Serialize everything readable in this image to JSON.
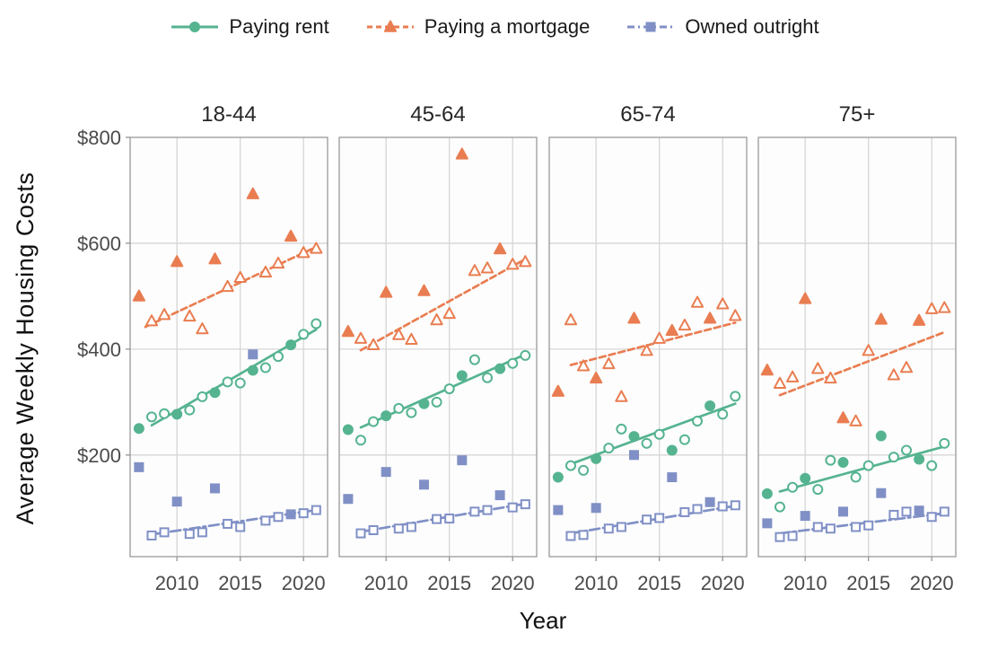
{
  "chart_data": {
    "type": "scatter",
    "title": "",
    "xlabel": "Year",
    "ylabel": "Average Weekly Housing Costs",
    "legend_position": "top",
    "grid": true,
    "xlim": [
      2006.3,
      2021.9
    ],
    "ylim": [
      8,
      800
    ],
    "xticks": [
      2010,
      2015,
      2020
    ],
    "xtick_labels": [
      "2010",
      "2015",
      "2020"
    ],
    "yticks": [
      200,
      400,
      600,
      800
    ],
    "ytick_labels": [
      "$200",
      "$400",
      "$600",
      "$800"
    ],
    "years": [
      2007,
      2008,
      2009,
      2010,
      2011,
      2012,
      2013,
      2014,
      2015,
      2016,
      2017,
      2018,
      2019,
      2020,
      2021
    ],
    "filled_marker_years": [
      2007,
      2010,
      2013,
      2016,
      2019
    ],
    "series_styles": [
      {
        "name": "Paying rent",
        "color": "#55b390",
        "marker": "circle",
        "line": "solid"
      },
      {
        "name": "Paying a mortgage",
        "color": "#e97d51",
        "marker": "triangle",
        "line": "dashed"
      },
      {
        "name": "Owned outright",
        "color": "#8090c6",
        "marker": "square",
        "line": "dashdot"
      }
    ],
    "facets": [
      {
        "title": "18-44",
        "series": [
          {
            "name": "Paying rent",
            "values": [
              250,
              272,
              278,
              277,
              285,
              310,
              318,
              338,
              336,
              360,
              365,
              386,
              408,
              428,
              448
            ],
            "trend": {
              "x1": 2008,
              "v1": 256,
              "x2": 2021,
              "v2": 437
            }
          },
          {
            "name": "Paying a mortgage",
            "values": [
              500,
              453,
              465,
              565,
              462,
              438,
              570,
              518,
              535,
              693,
              545,
              562,
              613,
              582,
              590
            ],
            "trend": {
              "x1": 2007.5,
              "v1": 442,
              "x2": 2021,
              "v2": 593
            }
          },
          {
            "name": "Owned outright",
            "values": [
              177,
              48,
              54,
              112,
              51,
              54,
              137,
              70,
              64,
              390,
              76,
              83,
              88,
              90,
              96
            ],
            "trend": {
              "x1": 2008,
              "v1": 50,
              "x2": 2021,
              "v2": 96
            }
          }
        ]
      },
      {
        "title": "45-64",
        "series": [
          {
            "name": "Paying rent",
            "values": [
              248,
              228,
              263,
              274,
              288,
              280,
              297,
              300,
              325,
              350,
              380,
              346,
              363,
              373,
              388
            ],
            "trend": {
              "x1": 2008,
              "v1": 252,
              "x2": 2021,
              "v2": 390
            }
          },
          {
            "name": "Paying a mortgage",
            "values": [
              433,
              420,
              408,
              507,
              427,
              418,
              510,
              455,
              467,
              768,
              548,
              553,
              589,
              560,
              565
            ],
            "trend": {
              "x1": 2008,
              "v1": 398,
              "x2": 2021,
              "v2": 570
            }
          },
          {
            "name": "Owned outright",
            "values": [
              117,
              52,
              58,
              168,
              61,
              64,
              144,
              79,
              80,
              190,
              93,
              96,
              124,
              101,
              107
            ],
            "trend": {
              "x1": 2008,
              "v1": 55,
              "x2": 2021,
              "v2": 108
            }
          }
        ]
      },
      {
        "title": "65-74",
        "series": [
          {
            "name": "Paying rent",
            "values": [
              158,
              180,
              171,
              193,
              213,
              249,
              235,
              222,
              239,
              209,
              229,
              264,
              293,
              277,
              311
            ],
            "trend": {
              "x1": 2008,
              "v1": 183,
              "x2": 2021,
              "v2": 297
            }
          },
          {
            "name": "Paying a mortgage",
            "values": [
              320,
              455,
              368,
              345,
              372,
              310,
              458,
              397,
              420,
              435,
              445,
              488,
              458,
              485,
              463
            ],
            "trend": {
              "x1": 2008,
              "v1": 370,
              "x2": 2021,
              "v2": 450
            }
          },
          {
            "name": "Owned outright",
            "values": [
              96,
              47,
              49,
              100,
              61,
              64,
              200,
              78,
              81,
              158,
              92,
              98,
              111,
              103,
              105
            ],
            "trend": {
              "x1": 2008,
              "v1": 52,
              "x2": 2021,
              "v2": 104
            }
          }
        ]
      },
      {
        "title": "75+",
        "series": [
          {
            "name": "Paying rent",
            "values": [
              127,
              102,
              139,
              156,
              135,
              190,
              186,
              158,
              180,
              236,
              196,
              209,
              192,
              180,
              222
            ],
            "trend": {
              "x1": 2008,
              "v1": 131,
              "x2": 2021,
              "v2": 216
            }
          },
          {
            "name": "Paying a mortgage",
            "values": [
              360,
              335,
              347,
              495,
              363,
              345,
              270,
              264,
              397,
              456,
              351,
              365,
              454,
              476,
              478
            ],
            "trend": {
              "x1": 2008,
              "v1": 313,
              "x2": 2021,
              "v2": 432
            }
          },
          {
            "name": "Owned outright",
            "values": [
              71,
              45,
              47,
              85,
              64,
              61,
              93,
              64,
              67,
              128,
              87,
              93,
              95,
              83,
              93
            ],
            "trend": {
              "x1": 2008,
              "v1": 52,
              "x2": 2021,
              "v2": 90
            }
          }
        ]
      }
    ]
  }
}
